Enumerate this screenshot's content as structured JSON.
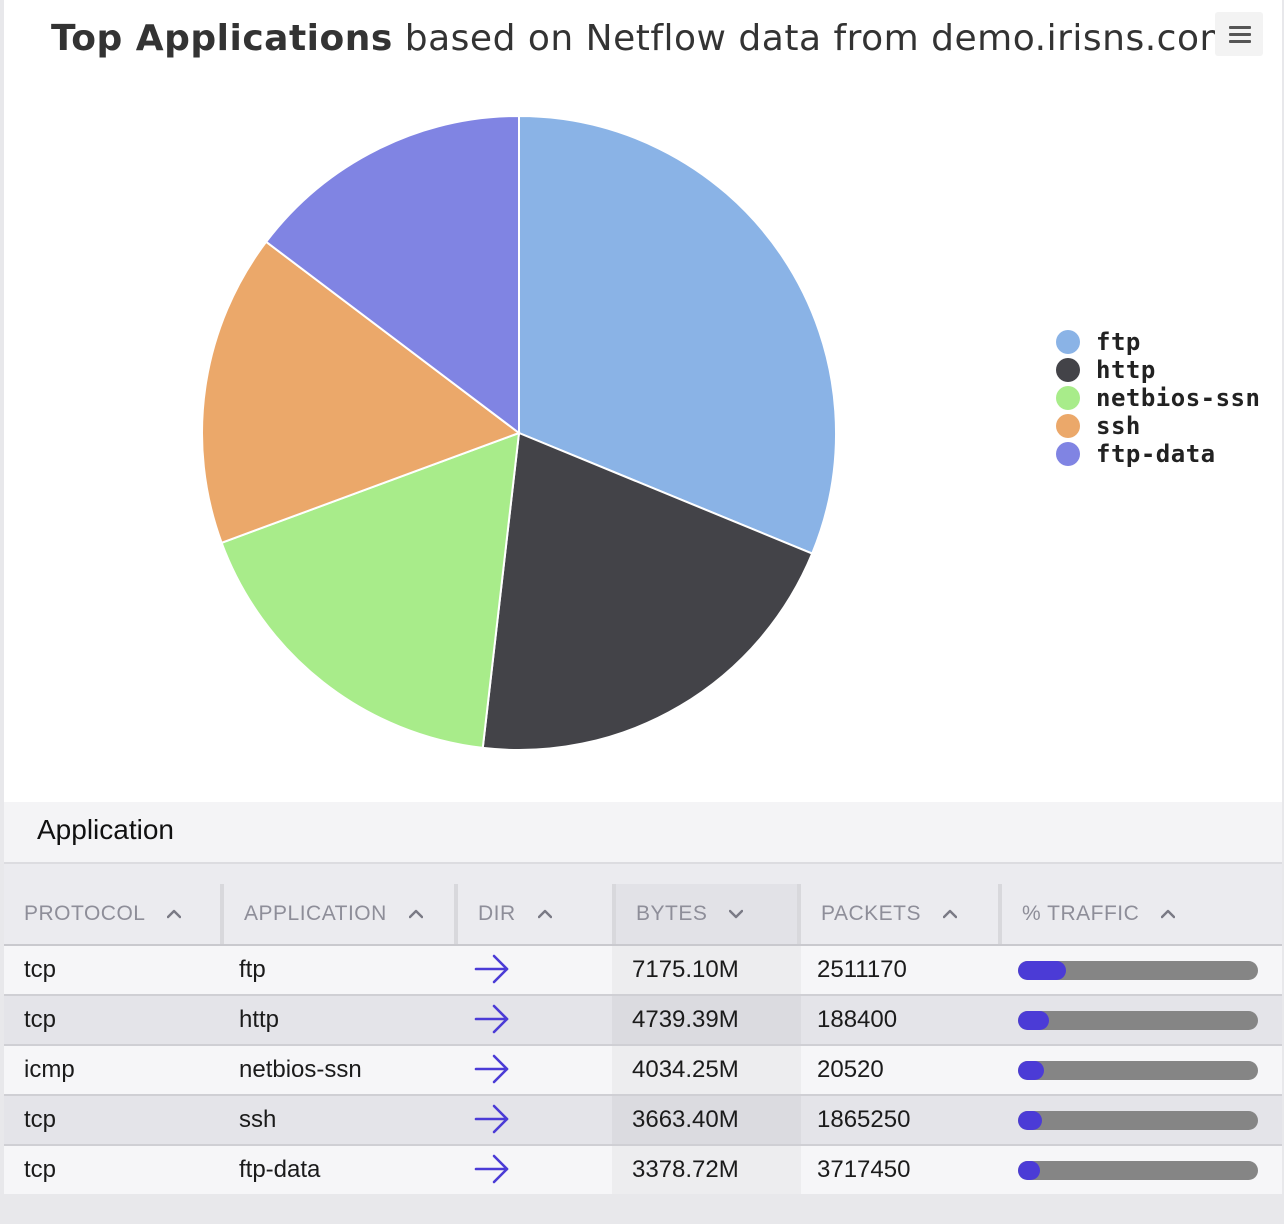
{
  "title": {
    "bold": "Top Applications",
    "rest": " based on Netflow data from demo.irisns.com"
  },
  "menu_icon": "hamburger-menu-icon",
  "chart_data": {
    "type": "pie",
    "categories": [
      "ftp",
      "http",
      "netbios-ssn",
      "ssh",
      "ftp-data"
    ],
    "values": [
      7175.1,
      4739.39,
      4034.25,
      3663.4,
      3378.72
    ],
    "colors": [
      "#8ab3e6",
      "#434348",
      "#a8ec8a",
      "#eba86a",
      "#8084e3"
    ],
    "legend_position": "right",
    "title": "Top Applications based on Netflow data from demo.irisns.com"
  },
  "section": {
    "title": "Application"
  },
  "table": {
    "columns": [
      {
        "label": "PROTOCOL",
        "sort": "asc"
      },
      {
        "label": "APPLICATION",
        "sort": "asc"
      },
      {
        "label": "DIR",
        "sort": "asc"
      },
      {
        "label": "BYTES",
        "sort": "desc"
      },
      {
        "label": "PACKETS",
        "sort": "asc"
      },
      {
        "label": "% TRAFFIC",
        "sort": "asc"
      }
    ],
    "rows": [
      {
        "protocol": "tcp",
        "application": "ftp",
        "dir": "outbound-arrow-icon",
        "bytes": "7175.10M",
        "packets": "2511170",
        "traffic_fraction": 0.2
      },
      {
        "protocol": "tcp",
        "application": "http",
        "dir": "outbound-arrow-icon",
        "bytes": "4739.39M",
        "packets": "188400",
        "traffic_fraction": 0.13
      },
      {
        "protocol": "icmp",
        "application": "netbios-ssn",
        "dir": "outbound-arrow-icon",
        "bytes": "4034.25M",
        "packets": "20520",
        "traffic_fraction": 0.11
      },
      {
        "protocol": "tcp",
        "application": "ssh",
        "dir": "outbound-arrow-icon",
        "bytes": "3663.40M",
        "packets": "1865250",
        "traffic_fraction": 0.1
      },
      {
        "protocol": "tcp",
        "application": "ftp-data",
        "dir": "outbound-arrow-icon",
        "bytes": "3378.72M",
        "packets": "3717450",
        "traffic_fraction": 0.09
      }
    ]
  },
  "accent_color": "#4b3bd6"
}
